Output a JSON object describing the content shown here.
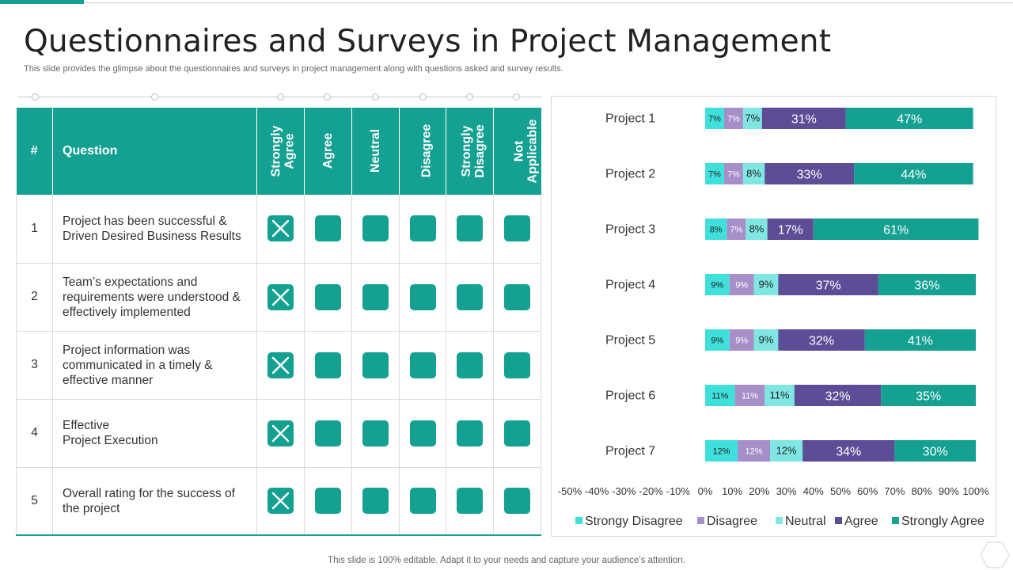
{
  "page": {
    "title": "Questionnaires and Surveys in Project Management",
    "subtitle": "This slide provides the glimpse about the questionnaires and surveys in project management along with questions asked and survey results.",
    "footer": "This slide is 100% editable. Adapt it to your needs and capture your audience’s attention."
  },
  "table": {
    "headers": {
      "num": "#",
      "question": "Question",
      "strongly_agree": [
        "Strongly",
        "Agree"
      ],
      "agree": "Agree",
      "neutral": "Neutral",
      "disagree": "Disagree",
      "strongly_disagree": [
        "Strongly",
        "Disagree"
      ],
      "not_applicable": [
        "Not",
        "Applicable"
      ]
    },
    "rows": [
      {
        "num": "1",
        "lines": [
          "Project has been successful &",
          "Driven Desired Business Results"
        ]
      },
      {
        "num": "2",
        "lines": [
          "Team’s expectations and",
          "requirements were understood &",
          "effectively implemented"
        ]
      },
      {
        "num": "3",
        "lines": [
          "Project information was",
          "communicated in a timely &",
          "effective manner"
        ]
      },
      {
        "num": "4",
        "lines": [
          "Effective",
          "Project Execution"
        ]
      },
      {
        "num": "5",
        "lines": [
          "Overall rating for the success of",
          "the project"
        ]
      }
    ],
    "checkbox_icon": "x-mark-icon"
  },
  "colors": {
    "teal": "#14a191",
    "strongly_disagree": "#3fe0dc",
    "disagree": "#a68fc8",
    "neutral": "#7fe6e2",
    "agree": "#5c4d96",
    "strongly_agree": "#14a191"
  },
  "chart_data": {
    "type": "bar",
    "orientation": "horizontal",
    "stacked": true,
    "categories": [
      "Project 1",
      "Project 2",
      "Project 3",
      "Project 4",
      "Project 5",
      "Project 6",
      "Project 7"
    ],
    "series": [
      {
        "name": "Strongy Disagree",
        "color": "#3fe0dc",
        "values": [
          7,
          7,
          8,
          9,
          9,
          11,
          12
        ]
      },
      {
        "name": "Disagree",
        "color": "#a68fc8",
        "values": [
          7,
          7,
          7,
          9,
          9,
          11,
          12
        ]
      },
      {
        "name": "Neutral",
        "color": "#7fe6e2",
        "values": [
          7,
          8,
          8,
          9,
          9,
          11,
          12
        ]
      },
      {
        "name": "Agree",
        "color": "#5c4d96",
        "values": [
          31,
          33,
          17,
          37,
          32,
          32,
          34
        ]
      },
      {
        "name": "Strongly Agree",
        "color": "#14a191",
        "values": [
          47,
          44,
          61,
          36,
          41,
          35,
          30
        ]
      }
    ],
    "data_labels": [
      [
        "7%",
        "7%",
        "7%",
        "31%",
        "47%"
      ],
      [
        "7%",
        "7%",
        "8%",
        "33%",
        "44%"
      ],
      [
        "8%",
        "7%",
        "8%",
        "17%",
        "61%"
      ],
      [
        "9%",
        "9%",
        "9%",
        "37%",
        "36%"
      ],
      [
        "9%",
        "9%",
        "9%",
        "32%",
        "41%"
      ],
      [
        "11%",
        "11%",
        "11%",
        "32%",
        "35%"
      ],
      [
        "12%",
        "12%",
        "12%",
        "34%",
        "30%"
      ]
    ],
    "x_ticks": [
      "-50%",
      "-40%",
      "-30%",
      "-20%",
      "-10%",
      "0%",
      "10%",
      "20%",
      "30%",
      "40%",
      "50%",
      "60%",
      "70%",
      "80%",
      "90%",
      "100%"
    ],
    "xlim": [
      -50,
      100
    ],
    "legend_position": "bottom",
    "grid": false
  }
}
